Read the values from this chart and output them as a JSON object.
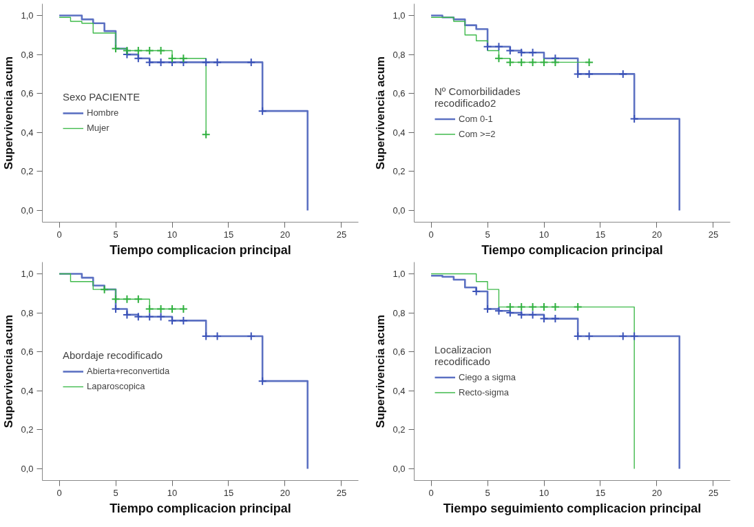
{
  "chart_data": [
    {
      "type": "step",
      "xlabel": "Tiempo complicacion principal",
      "ylabel": "Supervivencia acum",
      "legend_title": "Sexo PACIENTE",
      "legend": "left",
      "grid": false,
      "xlim": [
        -1.5,
        26.5
      ],
      "ylim": [
        -0.06,
        1.06
      ],
      "xticks": [
        0,
        5,
        10,
        15,
        20,
        25
      ],
      "yticks": [
        {
          "value": 0,
          "label": "0,0"
        },
        {
          "value": 0.2,
          "label": "0,2"
        },
        {
          "value": 0.4,
          "label": "0,4"
        },
        {
          "value": 0.6,
          "label": "0,6"
        },
        {
          "value": 0.8,
          "label": "0,8"
        },
        {
          "value": 1,
          "label": "1,0"
        }
      ],
      "line_style": "solid",
      "series": [
        {
          "name": "Hombre",
          "color": "#5b70c2",
          "x": [
            0,
            2,
            3,
            4,
            5,
            6,
            7,
            8,
            18,
            22
          ],
          "values": [
            1.0,
            0.98,
            0.96,
            0.92,
            0.83,
            0.8,
            0.78,
            0.76,
            0.51,
            0.0
          ]
        },
        {
          "name": "Mujer",
          "color": "#3fba4b",
          "x": [
            0,
            1,
            2,
            3,
            5,
            6,
            10,
            13
          ],
          "values": [
            0.99,
            0.97,
            0.96,
            0.91,
            0.83,
            0.82,
            0.78,
            0.39
          ]
        },
        {
          "type": "scatter",
          "marker": "cross",
          "color": "#3a52b8",
          "x": [
            6,
            7,
            8,
            9,
            10,
            11,
            13,
            14,
            17,
            18
          ],
          "values": [
            0.8,
            0.78,
            0.76,
            0.76,
            0.76,
            0.76,
            0.76,
            0.76,
            0.76,
            0.51
          ]
        },
        {
          "type": "scatter",
          "marker": "cross",
          "color": "#2fb03e",
          "x": [
            5,
            6,
            7,
            8,
            9,
            10,
            11,
            13
          ],
          "values": [
            0.83,
            0.82,
            0.82,
            0.82,
            0.82,
            0.78,
            0.78,
            0.39
          ]
        }
      ]
    },
    {
      "type": "step",
      "xlabel": "Tiempo complicacion principal",
      "ylabel": "Supervivencia acum",
      "legend_title": "Nº Comorbilidades\nrecodificado2",
      "legend": "left",
      "grid": false,
      "xlim": [
        -1.5,
        26.5
      ],
      "ylim": [
        -0.06,
        1.06
      ],
      "xticks": [
        0,
        5,
        10,
        15,
        20,
        25
      ],
      "yticks": [
        {
          "value": 0,
          "label": "0,0"
        },
        {
          "value": 0.2,
          "label": "0,2"
        },
        {
          "value": 0.4,
          "label": "0,4"
        },
        {
          "value": 0.6,
          "label": "0,6"
        },
        {
          "value": 0.8,
          "label": "0,8"
        },
        {
          "value": 1,
          "label": "1,0"
        }
      ],
      "line_style": "solid",
      "series": [
        {
          "name": "Com 0-1",
          "color": "#5b70c2",
          "x": [
            0,
            1,
            2,
            3,
            4,
            5,
            7,
            8,
            10,
            13,
            18,
            22
          ],
          "values": [
            1.0,
            0.99,
            0.98,
            0.95,
            0.93,
            0.84,
            0.82,
            0.81,
            0.78,
            0.7,
            0.47,
            0.0
          ]
        },
        {
          "name": "Com >=2",
          "color": "#3fba4b",
          "x": [
            0,
            2,
            3,
            4,
            5,
            6,
            7,
            14
          ],
          "values": [
            0.99,
            0.97,
            0.9,
            0.87,
            0.82,
            0.78,
            0.76,
            0.76
          ]
        },
        {
          "type": "scatter",
          "marker": "cross",
          "color": "#3a52b8",
          "x": [
            5,
            6,
            7,
            8,
            9,
            11,
            13,
            14,
            17,
            18
          ],
          "values": [
            0.84,
            0.84,
            0.82,
            0.81,
            0.81,
            0.78,
            0.7,
            0.7,
            0.7,
            0.47
          ]
        },
        {
          "type": "scatter",
          "marker": "cross",
          "color": "#2fb03e",
          "x": [
            6,
            7,
            8,
            9,
            10,
            11,
            14
          ],
          "values": [
            0.78,
            0.76,
            0.76,
            0.76,
            0.76,
            0.76,
            0.76
          ]
        }
      ]
    },
    {
      "type": "step",
      "xlabel": "Tiempo complicacion principal",
      "ylabel": "Supervivencia acum",
      "legend_title": "Abordaje recodificado",
      "legend": "left",
      "grid": false,
      "xlim": [
        -1.5,
        26.5
      ],
      "ylim": [
        -0.06,
        1.06
      ],
      "xticks": [
        0,
        5,
        10,
        15,
        20,
        25
      ],
      "yticks": [
        {
          "value": 0,
          "label": "0,0"
        },
        {
          "value": 0.2,
          "label": "0,2"
        },
        {
          "value": 0.4,
          "label": "0,4"
        },
        {
          "value": 0.6,
          "label": "0,6"
        },
        {
          "value": 0.8,
          "label": "0,8"
        },
        {
          "value": 1,
          "label": "1,0"
        }
      ],
      "line_style": "solid",
      "series": [
        {
          "name": "Abierta+reconvertida",
          "color": "#5b70c2",
          "x": [
            0,
            2,
            3,
            4,
            5,
            6,
            7,
            10,
            13,
            18,
            22
          ],
          "values": [
            1.0,
            0.98,
            0.94,
            0.92,
            0.82,
            0.79,
            0.78,
            0.76,
            0.68,
            0.45,
            0.0
          ]
        },
        {
          "name": "Laparoscopica",
          "color": "#3fba4b",
          "x": [
            0,
            1,
            3,
            5,
            8,
            11
          ],
          "values": [
            1.0,
            0.96,
            0.92,
            0.87,
            0.82,
            0.82
          ]
        },
        {
          "type": "scatter",
          "marker": "cross",
          "color": "#3a52b8",
          "x": [
            5,
            6,
            7,
            8,
            9,
            10,
            11,
            13,
            14,
            17,
            18
          ],
          "values": [
            0.82,
            0.79,
            0.78,
            0.78,
            0.78,
            0.76,
            0.76,
            0.68,
            0.68,
            0.68,
            0.45
          ]
        },
        {
          "type": "scatter",
          "marker": "cross",
          "color": "#2fb03e",
          "x": [
            4,
            5,
            6,
            7,
            8,
            9,
            10,
            11
          ],
          "values": [
            0.92,
            0.87,
            0.87,
            0.87,
            0.82,
            0.82,
            0.82,
            0.82
          ]
        }
      ]
    },
    {
      "type": "step",
      "xlabel": "Tiempo seguimiento complicacion principal",
      "ylabel": "Supervivencia acum",
      "legend_title": "Localizacion\nrecodificado",
      "legend": "left",
      "grid": false,
      "xlim": [
        -1.5,
        26.5
      ],
      "ylim": [
        -0.06,
        1.06
      ],
      "xticks": [
        0,
        5,
        10,
        15,
        20,
        25
      ],
      "yticks": [
        {
          "value": 0,
          "label": "0,0"
        },
        {
          "value": 0.2,
          "label": "0,2"
        },
        {
          "value": 0.4,
          "label": "0,4"
        },
        {
          "value": 0.6,
          "label": "0,6"
        },
        {
          "value": 0.8,
          "label": "0,8"
        },
        {
          "value": 1,
          "label": "1,0"
        }
      ],
      "line_style": "solid",
      "series": [
        {
          "name": "Ciego a sigma",
          "color": "#5b70c2",
          "x": [
            0,
            1,
            2,
            3,
            4,
            5,
            6,
            7,
            8,
            10,
            13,
            22
          ],
          "values": [
            0.99,
            0.985,
            0.97,
            0.93,
            0.91,
            0.82,
            0.81,
            0.8,
            0.79,
            0.77,
            0.68,
            0.0
          ]
        },
        {
          "name": "Recto-sigma",
          "color": "#3fba4b",
          "x": [
            0,
            4,
            5,
            6,
            18
          ],
          "values": [
            1.0,
            0.96,
            0.92,
            0.83,
            0.0
          ]
        },
        {
          "type": "scatter",
          "marker": "cross",
          "color": "#3a52b8",
          "x": [
            4,
            5,
            6,
            7,
            8,
            9,
            10,
            11,
            13,
            14,
            17,
            18
          ],
          "values": [
            0.91,
            0.82,
            0.81,
            0.8,
            0.79,
            0.79,
            0.77,
            0.77,
            0.68,
            0.68,
            0.68,
            0.68
          ]
        },
        {
          "type": "scatter",
          "marker": "cross",
          "color": "#2fb03e",
          "x": [
            7,
            8,
            9,
            10,
            11,
            13
          ],
          "values": [
            0.83,
            0.83,
            0.83,
            0.83,
            0.83,
            0.83
          ]
        }
      ]
    }
  ]
}
